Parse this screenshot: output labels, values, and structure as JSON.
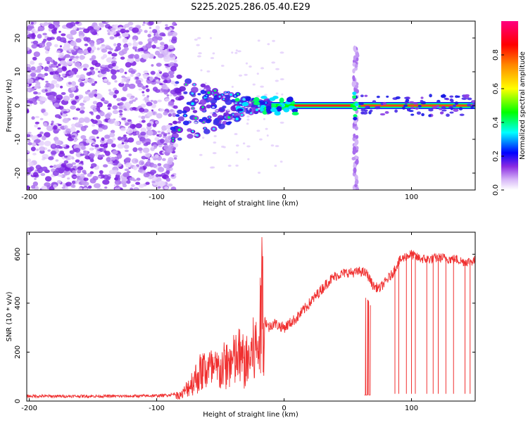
{
  "title": "S225.2025.286.05.40.E29",
  "chart_data": [
    {
      "type": "heatmap",
      "title": "S225.2025.286.05.40.E29",
      "xlabel": "Height of straight line (km)",
      "ylabel": "Frequency (Hz)",
      "xlim": [
        -202,
        150
      ],
      "ylim": [
        -25,
        25
      ],
      "xticks": [
        -200,
        -100,
        0,
        100
      ],
      "yticks": [
        -20,
        -10,
        0,
        10,
        20
      ],
      "colorbar": {
        "label": "Normalized spectral amplitude",
        "range": [
          0,
          1
        ],
        "ticks": [
          "0.0",
          "0.2",
          "0.4",
          "0.6",
          "0.8"
        ],
        "tick_values": [
          0.0,
          0.2,
          0.4,
          0.6,
          0.8
        ],
        "colors": [
          "#ffffff",
          "#8a2be2",
          "#0000ff",
          "#00ffff",
          "#00ff00",
          "#ffff00",
          "#ff8800",
          "#ff0000",
          "#ff0080"
        ]
      },
      "regions": [
        {
          "name": "noise scatter",
          "x_range": [
            -202,
            -85
          ],
          "freq_range": [
            -25,
            25
          ],
          "amplitude": 0.15
        },
        {
          "name": "transition",
          "x_range": [
            -85,
            -10
          ],
          "freq_range": [
            -12,
            5
          ],
          "amplitude": 0.3
        },
        {
          "name": "carrier line",
          "x_range": [
            -10,
            150
          ],
          "freq_center": 0,
          "amplitude": 0.95
        },
        {
          "name": "spike",
          "x": 56,
          "freq_range": [
            -25,
            17
          ],
          "amplitude": 0.2
        }
      ]
    },
    {
      "type": "line",
      "xlabel": "Height of straight line (km)",
      "ylabel": "SNR (10 * v/v)",
      "xlim": [
        -202,
        150
      ],
      "ylim": [
        0,
        690
      ],
      "xticks": [
        -200,
        -100,
        0,
        100
      ],
      "yticks": [
        0,
        200,
        400,
        600
      ],
      "color": "#f03030",
      "series": [
        {
          "name": "SNR",
          "x": [
            -202,
            -180,
            -160,
            -140,
            -120,
            -100,
            -90,
            -80,
            -75,
            -70,
            -65,
            -60,
            -55,
            -50,
            -45,
            -40,
            -35,
            -30,
            -25,
            -20,
            -18,
            -17,
            -15,
            -12,
            -8,
            -5,
            0,
            5,
            10,
            15,
            20,
            25,
            30,
            35,
            40,
            45,
            50,
            55,
            60,
            65,
            70,
            75,
            80,
            85,
            90,
            95,
            100,
            105,
            110,
            115,
            120,
            125,
            130,
            135,
            140,
            145,
            150
          ],
          "y": [
            20,
            20,
            20,
            20,
            20,
            22,
            25,
            35,
            80,
            120,
            160,
            180,
            160,
            170,
            200,
            210,
            240,
            200,
            260,
            300,
            440,
            680,
            330,
            300,
            320,
            310,
            300,
            320,
            340,
            370,
            400,
            430,
            460,
            490,
            510,
            520,
            525,
            525,
            530,
            520,
            470,
            460,
            490,
            520,
            570,
            590,
            600,
            585,
            580,
            580,
            585,
            585,
            580,
            580,
            570,
            570,
            575
          ]
        }
      ],
      "dropouts": [
        {
          "x_range": [
            63,
            68
          ],
          "low": 25
        },
        {
          "x": 87,
          "low": 30
        },
        {
          "x": 90,
          "low": 30
        },
        {
          "x": 96,
          "low": 30
        },
        {
          "x": 100,
          "low": 30
        },
        {
          "x": 103,
          "low": 30
        },
        {
          "x": 112,
          "low": 30
        },
        {
          "x": 117,
          "low": 30
        },
        {
          "x": 121,
          "low": 30
        },
        {
          "x": 127,
          "low": 30
        },
        {
          "x": 133,
          "low": 30
        },
        {
          "x": 142,
          "low": 30
        },
        {
          "x": 146,
          "low": 30
        }
      ]
    }
  ]
}
